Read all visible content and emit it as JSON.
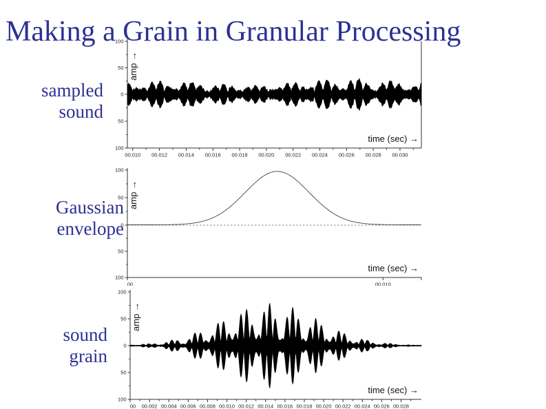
{
  "slide": {
    "title": "Making a Grain in Granular Processing"
  },
  "colors": {
    "accent_text": "#2d3192",
    "background": "#ffffff",
    "waveform": "#000000",
    "axis": "#333333",
    "tick_text": "#222222",
    "axis_text": "#111111",
    "dashed_zero": "#888888",
    "curve": "#444444"
  },
  "row_labels": [
    {
      "lines": [
        "sampled",
        "sound"
      ]
    },
    {
      "lines": [
        "Gaussian",
        "envelope"
      ]
    },
    {
      "lines": [
        "sound",
        "grain"
      ]
    }
  ],
  "chart_data": [
    {
      "name": "sampled-sound",
      "type": "line",
      "subtype": "dense-waveform",
      "title": "sampled sound",
      "xlabel": "time (sec) →",
      "ylabel": "amp →",
      "ylim": [
        -100,
        100
      ],
      "ytick_labels": [
        "100",
        "50",
        "0",
        "50",
        "100"
      ],
      "ytick_values": [
        100,
        50,
        0,
        -50,
        -100
      ],
      "x_range_sec": [
        0.0096,
        0.0316
      ],
      "xtick_values": [
        0.01,
        0.012,
        0.014,
        0.016,
        0.018,
        0.02,
        0.022,
        0.024,
        0.026,
        0.028,
        0.03
      ],
      "xtick_labels": [
        "00.010",
        "00.012",
        "00.014",
        "00.016",
        "00.018",
        "00.020",
        "00.022",
        "00.024",
        "00.026",
        "00.028",
        "00.030"
      ],
      "grid": false,
      "waveform": {
        "base_amp": 6,
        "peak_amp": 31,
        "beat_hz": [
          640,
          1040
        ],
        "beat_weights": [
          0.6,
          0.4
        ],
        "slow_mod_hz": 61,
        "jitter": 5
      }
    },
    {
      "name": "gaussian-envelope",
      "type": "line",
      "subtype": "gaussian-curve",
      "title": "Gaussian envelope",
      "xlabel": "time (sec) →",
      "ylabel": "amp →",
      "ylim": [
        -100,
        100
      ],
      "ytick_labels": [
        "100",
        "50",
        "0",
        "50",
        "100"
      ],
      "ytick_values": [
        100,
        50,
        0,
        -50,
        -100
      ],
      "x_range_sec": [
        0,
        0.0115
      ],
      "xtick_values": [
        0,
        0.01
      ],
      "xtick_labels": [
        "00",
        "00.010"
      ],
      "grid": false,
      "zero_line": "dashed",
      "gaussian": {
        "center_sec": 0.00586,
        "sigma_sec": 0.00125,
        "peak_amp": 97
      }
    },
    {
      "name": "sound-grain",
      "type": "line",
      "subtype": "dense-waveform",
      "title": "sound grain",
      "xlabel": "time (sec) →",
      "ylabel": "amp →",
      "ylim": [
        -100,
        100
      ],
      "ytick_labels": [
        "100",
        "50",
        "0",
        "50",
        "100"
      ],
      "ytick_values": [
        100,
        50,
        0,
        -50,
        -100
      ],
      "x_range_sec": [
        0,
        0.0301
      ],
      "xtick_values": [
        0,
        0.002,
        0.004,
        0.006,
        0.008,
        0.01,
        0.012,
        0.014,
        0.016,
        0.018,
        0.02,
        0.022,
        0.024,
        0.026,
        0.028
      ],
      "xtick_labels": [
        "00",
        "00.002",
        "00.004",
        "00.006",
        "00.008",
        "00.010",
        "00.012",
        "00.014",
        "00.016",
        "00.018",
        "00.020",
        "00.022",
        "00.024",
        "00.026",
        "00.028"
      ],
      "grid": false,
      "envelope": {
        "center_sec": 0.0145,
        "sigma_sec": 0.005,
        "peak_amp": 80
      },
      "waveform": {
        "beat_hz": [
          640,
          1040
        ],
        "beat_weights": [
          0.55,
          0.45
        ],
        "floor_amp": 0.8,
        "jitter": 1
      }
    }
  ]
}
